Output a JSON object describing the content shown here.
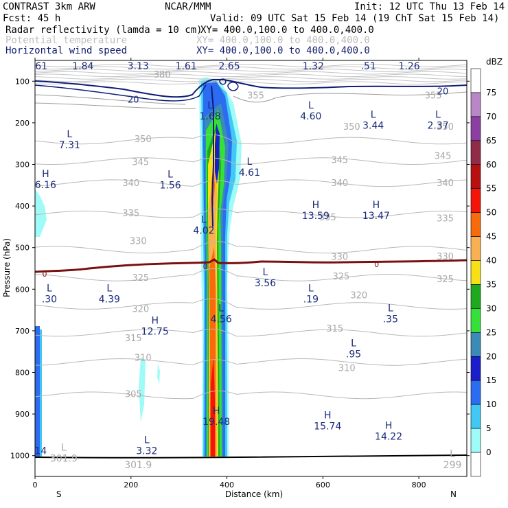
{
  "header": {
    "line1_left": "CONTRAST  3km ARW",
    "line1_center": "NCAR/MMM",
    "line1_right": "Init: 12 UTC Thu 13 Feb 14",
    "line2_left": "Fcst:    45 h",
    "line2_right": "Valid: 09 UTC Sat 15 Feb 14 (19 ChT Sat 15 Feb 14)",
    "fields": [
      {
        "name": "Radar reflectivity (lamda = 10 cm)",
        "xy": "XY= 400.0,100.0 to 400.0,400.0",
        "color": "#000000"
      },
      {
        "name": "Potential temperature",
        "xy": "XY= 400.0,100.0 to 400.0,400.0",
        "color": "#bdbdbd"
      },
      {
        "name": "Horizontal wind speed",
        "xy": "XY= 400.0,100.0 to 400.0,400.0",
        "color": "#101d6b"
      }
    ]
  },
  "chart_data": {
    "type": "cross-section",
    "xlabel": "Distance (km)",
    "ylabel": "Pressure (hPa)",
    "xlim": [
      0,
      900
    ],
    "ylim": [
      1050,
      50
    ],
    "x_ticks": [
      0,
      200,
      400,
      600,
      800
    ],
    "y_ticks": [
      100,
      200,
      300,
      400,
      500,
      600,
      700,
      800,
      900,
      1000
    ],
    "x_end_labels": {
      "left": "S",
      "right": "N"
    },
    "colorbar": {
      "units": "dBZ",
      "levels": [
        0,
        5,
        10,
        15,
        20,
        25,
        30,
        35,
        40,
        45,
        50,
        55,
        60,
        65,
        70,
        75
      ],
      "colors": [
        "#ffffff",
        "#9ffbf7",
        "#41c8f5",
        "#2c6cf0",
        "#1a1ecb",
        "#3a8bb7",
        "#35e038",
        "#1ea91f",
        "#f7e017",
        "#f8b052",
        "#f96a0b",
        "#f51409",
        "#b80f0f",
        "#8f2c47",
        "#8c3fa2",
        "#b987c6",
        "#ffffff"
      ]
    },
    "theta_contour_labels": [
      {
        "text": "380",
        "x": 265,
        "p": 85
      },
      {
        "text": "355",
        "x": 460,
        "p": 135
      },
      {
        "text": "355",
        "x": 830,
        "p": 135
      },
      {
        "text": "350",
        "x": 225,
        "p": 240
      },
      {
        "text": "350",
        "x": 660,
        "p": 210
      },
      {
        "text": "350",
        "x": 855,
        "p": 210
      },
      {
        "text": "345",
        "x": 220,
        "p": 295
      },
      {
        "text": "345",
        "x": 635,
        "p": 290
      },
      {
        "text": "345",
        "x": 850,
        "p": 280
      },
      {
        "text": "340",
        "x": 200,
        "p": 345
      },
      {
        "text": "340",
        "x": 635,
        "p": 345
      },
      {
        "text": "340",
        "x": 855,
        "p": 345
      },
      {
        "text": "335",
        "x": 200,
        "p": 418
      },
      {
        "text": "335",
        "x": 610,
        "p": 428
      },
      {
        "text": "335",
        "x": 855,
        "p": 430
      },
      {
        "text": "330",
        "x": 215,
        "p": 485
      },
      {
        "text": "330",
        "x": 635,
        "p": 523
      },
      {
        "text": "330",
        "x": 855,
        "p": 522
      },
      {
        "text": "325",
        "x": 220,
        "p": 573
      },
      {
        "text": "325",
        "x": 638,
        "p": 570
      },
      {
        "text": "325",
        "x": 855,
        "p": 576
      },
      {
        "text": "320",
        "x": 220,
        "p": 648
      },
      {
        "text": "320",
        "x": 675,
        "p": 615
      },
      {
        "text": "315",
        "x": 205,
        "p": 718
      },
      {
        "text": "315",
        "x": 625,
        "p": 695
      },
      {
        "text": "310",
        "x": 225,
        "p": 765
      },
      {
        "text": "310",
        "x": 650,
        "p": 790
      },
      {
        "text": "305",
        "x": 205,
        "p": 853
      }
    ],
    "theta_extrema": [
      {
        "mark": "L",
        "value": "301.9",
        "x": 60,
        "p": 1005
      },
      {
        "mark": "",
        "value": "301.9",
        "x": 215,
        "p": 1020
      },
      {
        "mark": "L",
        "value": "299",
        "x": 870,
        "p": 1020
      }
    ],
    "wind_contour_labels": [
      {
        "text": "20",
        "x": 205,
        "p": 145
      },
      {
        "text": "20",
        "x": 850,
        "p": 125
      },
      {
        "text": "0",
        "x": 20,
        "p": 563
      },
      {
        "text": "0",
        "x": 355,
        "p": 545
      },
      {
        "text": "0",
        "x": 712,
        "p": 540
      }
    ],
    "wind_extrema": [
      {
        "mark": "L",
        "value": ".61",
        "x": 10,
        "p": 60
      },
      {
        "mark": "L",
        "value": "1.84",
        "x": 100,
        "p": 60
      },
      {
        "mark": "L",
        "value": "3.13",
        "x": 215,
        "p": 60
      },
      {
        "mark": "L",
        "value": "1.61",
        "x": 315,
        "p": 60
      },
      {
        "mark": "",
        "value": "2.65",
        "x": 405,
        "p": 60
      },
      {
        "mark": "L",
        "value": "1.32",
        "x": 580,
        "p": 60
      },
      {
        "mark": "L",
        "value": ".51",
        "x": 695,
        "p": 60
      },
      {
        "mark": "L",
        "value": "1.26",
        "x": 780,
        "p": 60
      },
      {
        "mark": "L",
        "value": "1.68",
        "x": 365,
        "p": 180
      },
      {
        "mark": "L",
        "value": "4.60",
        "x": 575,
        "p": 180
      },
      {
        "mark": "L",
        "value": "3.44",
        "x": 705,
        "p": 203
      },
      {
        "mark": "L",
        "value": "2.37",
        "x": 840,
        "p": 203
      },
      {
        "mark": "L",
        "value": "7.31",
        "x": 72,
        "p": 250
      },
      {
        "mark": "L",
        "value": "4.61",
        "x": 447,
        "p": 316
      },
      {
        "mark": "L",
        "value": "1.56",
        "x": 282,
        "p": 346
      },
      {
        "mark": "H",
        "value": "6.16",
        "x": 22,
        "p": 345
      },
      {
        "mark": "H",
        "value": "13.59",
        "x": 585,
        "p": 420
      },
      {
        "mark": "H",
        "value": "13.47",
        "x": 711,
        "p": 420
      },
      {
        "mark": "L",
        "value": "4.02",
        "x": 352,
        "p": 455
      },
      {
        "mark": "L",
        "value": "3.56",
        "x": 480,
        "p": 581
      },
      {
        "mark": "L",
        "value": ".30",
        "x": 30,
        "p": 620
      },
      {
        "mark": "L",
        "value": "4.39",
        "x": 155,
        "p": 620
      },
      {
        "mark": "L",
        "value": ".19",
        "x": 575,
        "p": 620
      },
      {
        "mark": "L",
        "value": "4.56",
        "x": 388,
        "p": 668
      },
      {
        "mark": "L",
        "value": ".35",
        "x": 741,
        "p": 668
      },
      {
        "mark": "H",
        "value": "12.75",
        "x": 250,
        "p": 698
      },
      {
        "mark": "L",
        "value": ".95",
        "x": 664,
        "p": 752
      },
      {
        "mark": "H",
        "value": "19.48",
        "x": 378,
        "p": 915
      },
      {
        "mark": "H",
        "value": "15.74",
        "x": 610,
        "p": 925
      },
      {
        "mark": "H",
        "value": "14.22",
        "x": 737,
        "p": 950
      },
      {
        "mark": "",
        "value": "14",
        "x": 12,
        "p": 985
      },
      {
        "mark": "L",
        "value": "3.32",
        "x": 233,
        "p": 985
      }
    ]
  }
}
